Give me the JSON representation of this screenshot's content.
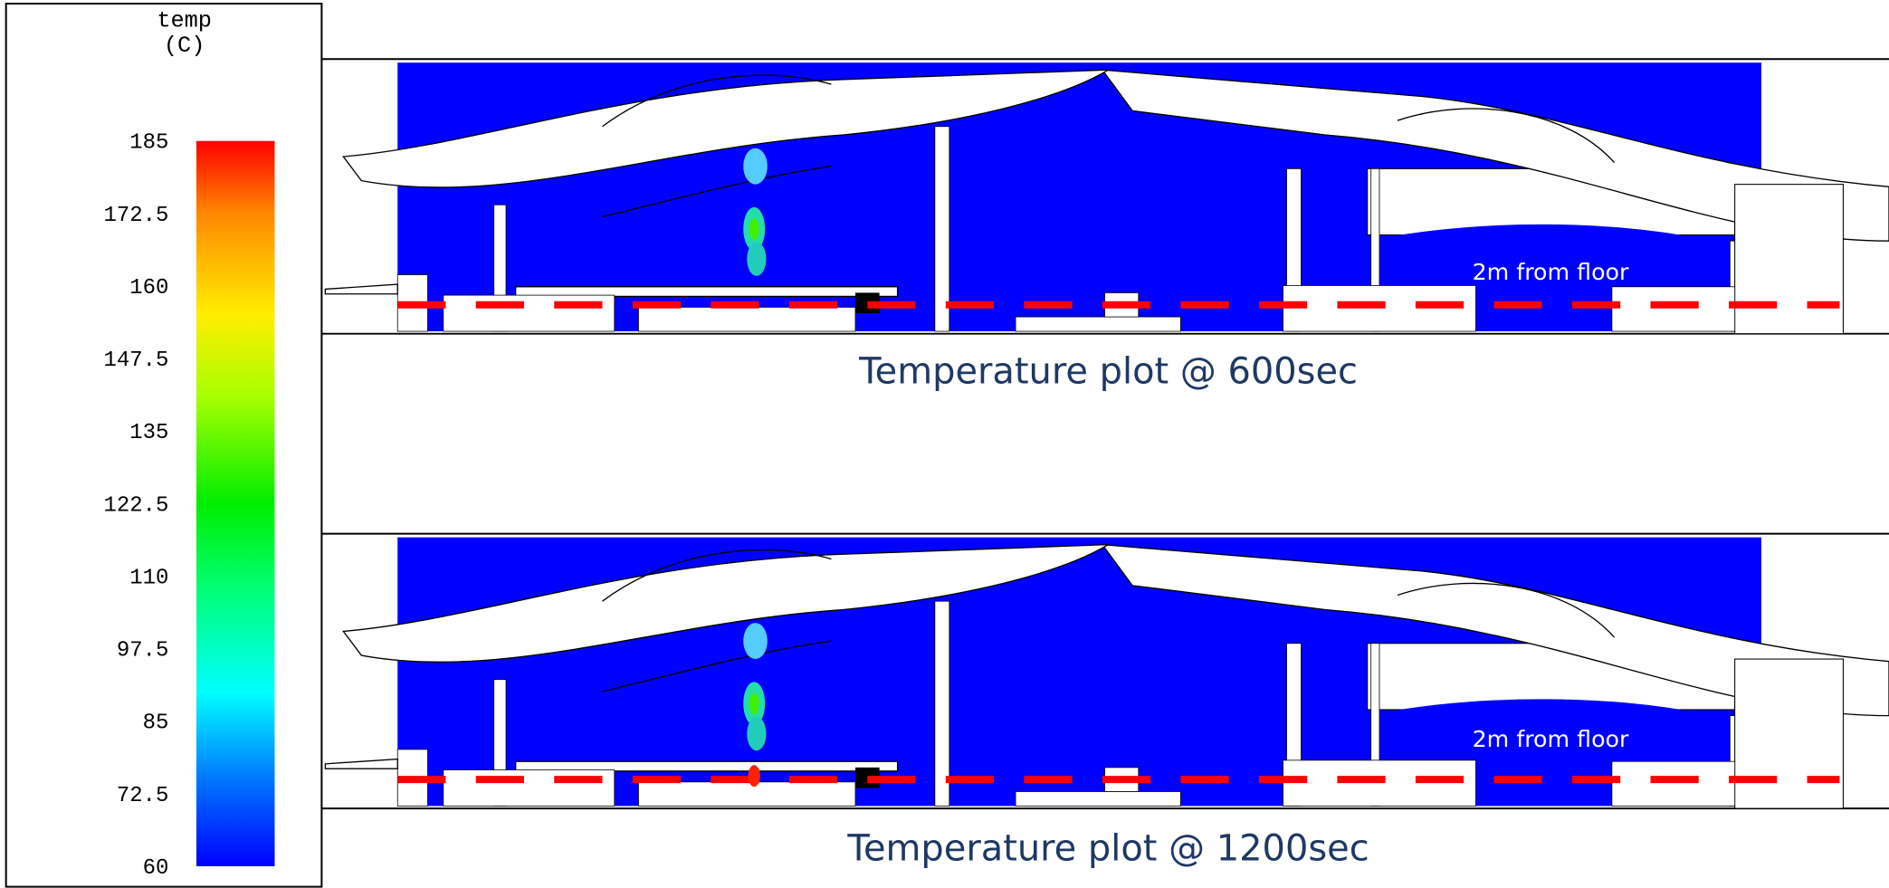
{
  "colorbar": {
    "title": [
      "temp",
      "(C)"
    ],
    "ticks": [
      185,
      172.5,
      160,
      147.5,
      135,
      122.5,
      110,
      97.5,
      85,
      72.5,
      60
    ]
  },
  "panels": [
    {
      "caption": "Temperature plot @ 600sec",
      "annotation": "2m from floor"
    },
    {
      "caption": "Temperature plot @ 1200sec",
      "annotation": "2m from floor"
    }
  ]
}
